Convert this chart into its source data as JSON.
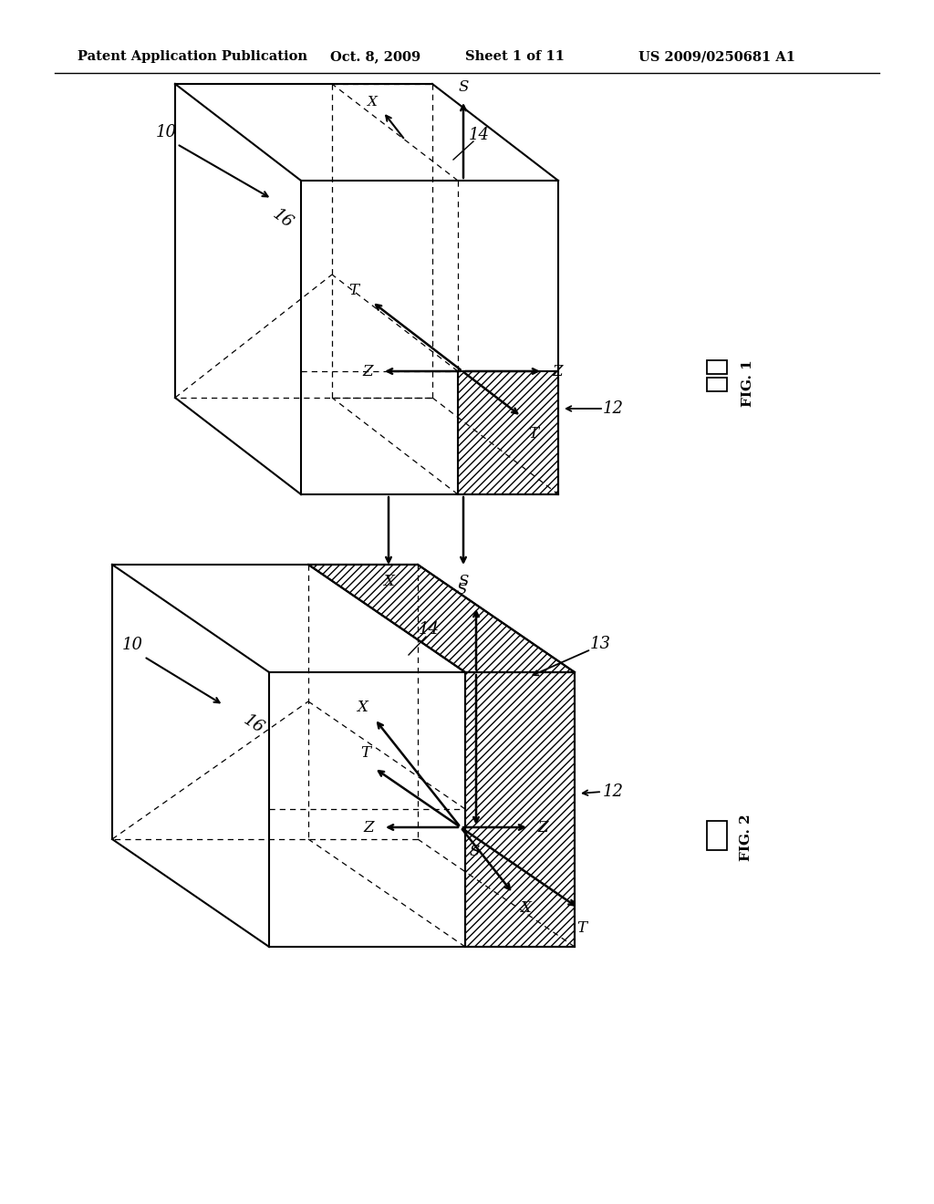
{
  "bg_color": "#ffffff",
  "line_color": "#000000",
  "header_text": "Patent Application Publication",
  "header_date": "Oct. 8, 2009",
  "header_sheet": "Sheet 1 of 11",
  "header_patent": "US 2009/0250681 A1",
  "fig1_label": "FIG. 1",
  "fig2_label": "FIG. 2",
  "label_10": "10",
  "label_12": "12",
  "label_13": "13",
  "label_14": "14",
  "label_16": "16"
}
